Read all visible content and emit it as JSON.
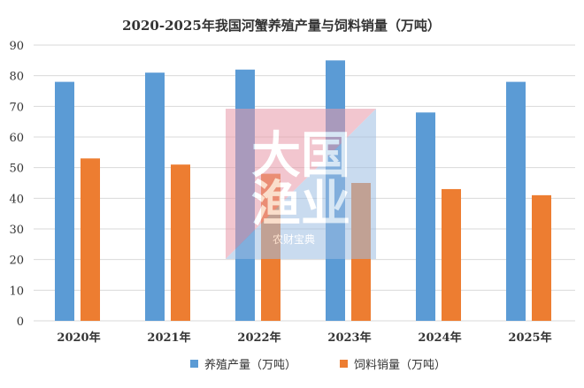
{
  "chart_data": {
    "type": "bar",
    "title": "2020-2025年我国河蟹养殖产量与饲料销量（万吨）",
    "categories": [
      "2020年",
      "2021年",
      "2022年",
      "2023年",
      "2024年",
      "2025年"
    ],
    "series": [
      {
        "name": "养殖产量（万吨）",
        "color": "#5b9bd5",
        "values": [
          78,
          81,
          82,
          85,
          68,
          78
        ]
      },
      {
        "name": "饲料销量（万吨）",
        "color": "#ed7d31",
        "values": [
          53,
          51,
          48,
          45,
          43,
          41
        ]
      }
    ],
    "ylim": [
      0,
      90
    ],
    "yticks": [
      "0",
      "10",
      "20",
      "30",
      "40",
      "50",
      "60",
      "70",
      "80",
      "90"
    ],
    "grid": true,
    "legend": "bottom"
  },
  "watermark": {
    "logo_text": "大国渔业",
    "sub_text": "农财宝典"
  }
}
